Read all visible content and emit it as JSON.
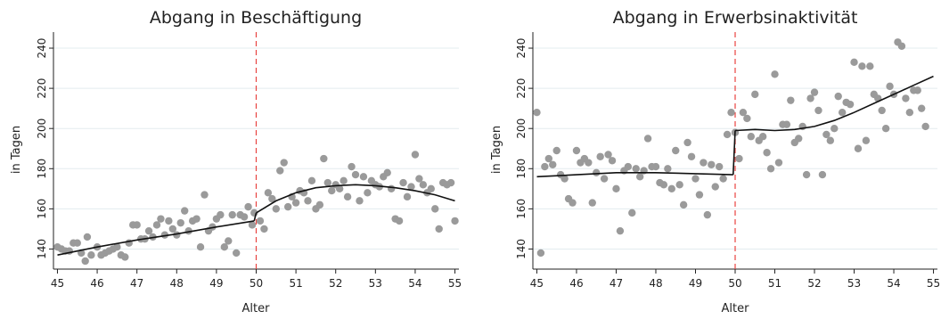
{
  "chart_data": [
    {
      "type": "scatter",
      "title": "Abgang in Beschäftigung",
      "xlabel": "Alter",
      "ylabel": "in Tagen",
      "xlim": [
        44.9,
        55.1
      ],
      "ylim": [
        130,
        248
      ],
      "x_ticks": [
        45,
        46,
        47,
        48,
        49,
        50,
        51,
        52,
        53,
        54,
        55
      ],
      "y_ticks": [
        140,
        160,
        180,
        200,
        220,
        240
      ],
      "grid": true,
      "cutoff": 50,
      "cutoff_color": "#e8423f",
      "point_color": "#9a9a9a",
      "line_color": "#111111",
      "points": [
        [
          45.0,
          141
        ],
        [
          45.1,
          140
        ],
        [
          45.2,
          139
        ],
        [
          45.3,
          139
        ],
        [
          45.4,
          143
        ],
        [
          45.5,
          143
        ],
        [
          45.6,
          138
        ],
        [
          45.7,
          134
        ],
        [
          45.75,
          146
        ],
        [
          45.85,
          137
        ],
        [
          46.0,
          141
        ],
        [
          46.1,
          137
        ],
        [
          46.2,
          138
        ],
        [
          46.3,
          139
        ],
        [
          46.4,
          140
        ],
        [
          46.5,
          141
        ],
        [
          46.6,
          137
        ],
        [
          46.7,
          136
        ],
        [
          46.8,
          143
        ],
        [
          46.9,
          152
        ],
        [
          47.0,
          152
        ],
        [
          47.1,
          145
        ],
        [
          47.2,
          145
        ],
        [
          47.3,
          149
        ],
        [
          47.4,
          146
        ],
        [
          47.5,
          152
        ],
        [
          47.6,
          155
        ],
        [
          47.7,
          147
        ],
        [
          47.8,
          154
        ],
        [
          47.9,
          150
        ],
        [
          48.0,
          147
        ],
        [
          48.1,
          153
        ],
        [
          48.2,
          159
        ],
        [
          48.3,
          149
        ],
        [
          48.4,
          154
        ],
        [
          48.5,
          155
        ],
        [
          48.6,
          141
        ],
        [
          48.7,
          167
        ],
        [
          48.8,
          149
        ],
        [
          48.9,
          151
        ],
        [
          49.0,
          155
        ],
        [
          49.1,
          157
        ],
        [
          49.2,
          141
        ],
        [
          49.3,
          144
        ],
        [
          49.4,
          157
        ],
        [
          49.5,
          138
        ],
        [
          49.6,
          157
        ],
        [
          49.7,
          156
        ],
        [
          49.8,
          161
        ],
        [
          49.9,
          152
        ],
        [
          49.95,
          158
        ],
        [
          50.1,
          154
        ],
        [
          50.2,
          150
        ],
        [
          50.3,
          168
        ],
        [
          50.4,
          165
        ],
        [
          50.5,
          160
        ],
        [
          50.6,
          179
        ],
        [
          50.7,
          183
        ],
        [
          50.8,
          161
        ],
        [
          50.9,
          166
        ],
        [
          51.0,
          163
        ],
        [
          51.1,
          169
        ],
        [
          51.2,
          168
        ],
        [
          51.3,
          164
        ],
        [
          51.4,
          174
        ],
        [
          51.5,
          160
        ],
        [
          51.6,
          162
        ],
        [
          51.7,
          185
        ],
        [
          51.8,
          173
        ],
        [
          51.9,
          169
        ],
        [
          52.0,
          172
        ],
        [
          52.1,
          170
        ],
        [
          52.2,
          174
        ],
        [
          52.3,
          166
        ],
        [
          52.4,
          181
        ],
        [
          52.5,
          177
        ],
        [
          52.6,
          164
        ],
        [
          52.7,
          176
        ],
        [
          52.8,
          168
        ],
        [
          52.9,
          174
        ],
        [
          53.0,
          172
        ],
        [
          53.1,
          171
        ],
        [
          53.2,
          176
        ],
        [
          53.3,
          178
        ],
        [
          53.4,
          170
        ],
        [
          53.5,
          155
        ],
        [
          53.6,
          154
        ],
        [
          53.7,
          173
        ],
        [
          53.8,
          166
        ],
        [
          53.9,
          171
        ],
        [
          54.0,
          187
        ],
        [
          54.1,
          175
        ],
        [
          54.2,
          172
        ],
        [
          54.3,
          168
        ],
        [
          54.4,
          170
        ],
        [
          54.5,
          160
        ],
        [
          54.6,
          150
        ],
        [
          54.7,
          173
        ],
        [
          54.8,
          172
        ],
        [
          54.9,
          173
        ],
        [
          55.0,
          154
        ]
      ],
      "fit_left": [
        [
          45.0,
          137
        ],
        [
          46.0,
          141
        ],
        [
          47.0,
          144.5
        ],
        [
          48.0,
          147.5
        ],
        [
          49.0,
          151
        ],
        [
          49.95,
          154
        ]
      ],
      "fit_right": [
        [
          50.0,
          158
        ],
        [
          50.5,
          164
        ],
        [
          51.0,
          168
        ],
        [
          51.5,
          170.5
        ],
        [
          52.0,
          171.5
        ],
        [
          52.5,
          172
        ],
        [
          53.0,
          171.5
        ],
        [
          53.5,
          170.5
        ],
        [
          54.0,
          169
        ],
        [
          54.5,
          167
        ],
        [
          55.0,
          164
        ]
      ]
    },
    {
      "type": "scatter",
      "title": "Abgang in Erwerbsinaktivität",
      "xlabel": "Alter",
      "ylabel": "in Tagen",
      "xlim": [
        44.9,
        55.1
      ],
      "ylim": [
        130,
        248
      ],
      "x_ticks": [
        45,
        46,
        47,
        48,
        49,
        50,
        51,
        52,
        53,
        54,
        55
      ],
      "y_ticks": [
        140,
        160,
        180,
        200,
        220,
        240
      ],
      "grid": true,
      "cutoff": 50,
      "cutoff_color": "#e8423f",
      "point_color": "#9a9a9a",
      "line_color": "#111111",
      "points": [
        [
          45.0,
          208
        ],
        [
          45.1,
          138
        ],
        [
          45.2,
          181
        ],
        [
          45.3,
          185
        ],
        [
          45.4,
          182
        ],
        [
          45.5,
          189
        ],
        [
          45.6,
          177
        ],
        [
          45.7,
          175
        ],
        [
          45.8,
          165
        ],
        [
          45.9,
          163
        ],
        [
          46.0,
          189
        ],
        [
          46.1,
          183
        ],
        [
          46.2,
          185
        ],
        [
          46.3,
          183
        ],
        [
          46.4,
          163
        ],
        [
          46.5,
          178
        ],
        [
          46.6,
          186
        ],
        [
          46.7,
          175
        ],
        [
          46.8,
          187
        ],
        [
          46.9,
          184
        ],
        [
          47.0,
          170
        ],
        [
          47.1,
          149
        ],
        [
          47.2,
          179
        ],
        [
          47.3,
          181
        ],
        [
          47.4,
          158
        ],
        [
          47.5,
          180
        ],
        [
          47.6,
          176
        ],
        [
          47.7,
          179
        ],
        [
          47.8,
          195
        ],
        [
          47.9,
          181
        ],
        [
          48.0,
          181
        ],
        [
          48.1,
          173
        ],
        [
          48.2,
          172
        ],
        [
          48.3,
          180
        ],
        [
          48.4,
          170
        ],
        [
          48.5,
          189
        ],
        [
          48.6,
          172
        ],
        [
          48.7,
          162
        ],
        [
          48.8,
          193
        ],
        [
          48.9,
          186
        ],
        [
          49.0,
          175
        ],
        [
          49.1,
          167
        ],
        [
          49.2,
          183
        ],
        [
          49.3,
          157
        ],
        [
          49.4,
          182
        ],
        [
          49.5,
          171
        ],
        [
          49.6,
          181
        ],
        [
          49.7,
          175
        ],
        [
          49.8,
          197
        ],
        [
          49.9,
          208
        ],
        [
          50.0,
          198
        ],
        [
          50.1,
          185
        ],
        [
          50.2,
          208
        ],
        [
          50.3,
          205
        ],
        [
          50.4,
          196
        ],
        [
          50.5,
          217
        ],
        [
          50.6,
          194
        ],
        [
          50.7,
          196
        ],
        [
          50.8,
          188
        ],
        [
          50.9,
          180
        ],
        [
          51.0,
          227
        ],
        [
          51.1,
          183
        ],
        [
          51.2,
          202
        ],
        [
          51.3,
          202
        ],
        [
          51.4,
          214
        ],
        [
          51.5,
          193
        ],
        [
          51.6,
          195
        ],
        [
          51.7,
          201
        ],
        [
          51.8,
          177
        ],
        [
          51.9,
          215
        ],
        [
          52.0,
          218
        ],
        [
          52.1,
          209
        ],
        [
          52.2,
          177
        ],
        [
          52.3,
          197
        ],
        [
          52.4,
          194
        ],
        [
          52.5,
          200
        ],
        [
          52.6,
          216
        ],
        [
          52.7,
          208
        ],
        [
          52.8,
          213
        ],
        [
          52.9,
          212
        ],
        [
          53.0,
          233
        ],
        [
          53.1,
          190
        ],
        [
          53.2,
          231
        ],
        [
          53.3,
          194
        ],
        [
          53.4,
          231
        ],
        [
          53.5,
          217
        ],
        [
          53.6,
          215
        ],
        [
          53.7,
          209
        ],
        [
          53.8,
          200
        ],
        [
          53.9,
          221
        ],
        [
          54.0,
          217
        ],
        [
          54.1,
          243
        ],
        [
          54.2,
          241
        ],
        [
          54.3,
          215
        ],
        [
          54.4,
          208
        ],
        [
          54.5,
          219
        ],
        [
          54.6,
          219
        ],
        [
          54.7,
          210
        ],
        [
          54.8,
          201
        ]
      ],
      "fit_left": [
        [
          45.0,
          176
        ],
        [
          46.0,
          177
        ],
        [
          47.0,
          178
        ],
        [
          48.0,
          178
        ],
        [
          49.0,
          177.5
        ],
        [
          49.95,
          177
        ]
      ],
      "fit_right": [
        [
          50.0,
          199
        ],
        [
          50.5,
          199.5
        ],
        [
          51.0,
          199
        ],
        [
          51.5,
          199.5
        ],
        [
          52.0,
          201
        ],
        [
          52.5,
          204
        ],
        [
          53.0,
          208
        ],
        [
          53.5,
          212.5
        ],
        [
          54.0,
          217
        ],
        [
          54.5,
          221.5
        ],
        [
          55.0,
          226
        ]
      ]
    }
  ]
}
